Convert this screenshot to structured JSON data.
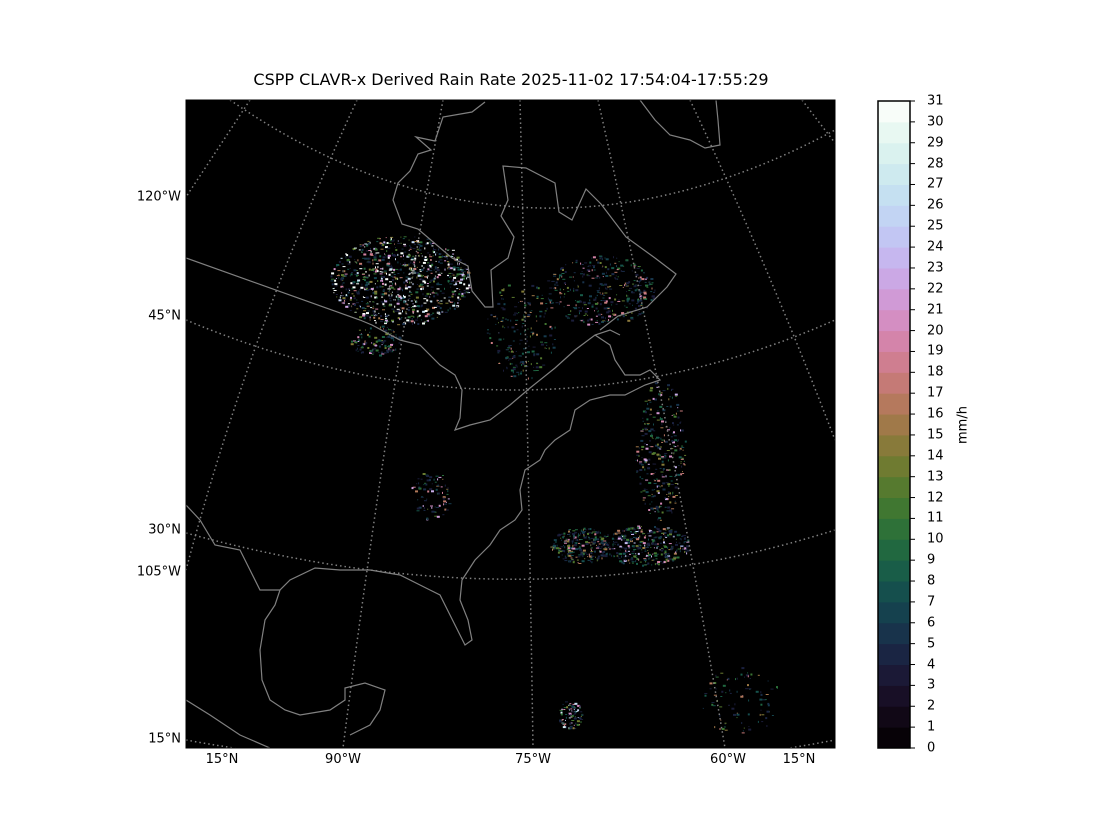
{
  "title": "CSPP CLAVR-x Derived Rain Rate 2025-11-02 17:54:04-17:55:29",
  "map": {
    "background_color": "#000000",
    "coastline_color": "#808080",
    "gridline_color": "#808080",
    "gridline_style": "dotted",
    "left_labels": [
      "120°W",
      "45°N",
      "30°N",
      "105°W",
      "15°N"
    ],
    "bottom_labels": [
      "15°N",
      "90°W",
      "75°W",
      "60°W",
      "15°N"
    ]
  },
  "colorbar": {
    "colormap": "cubehelix",
    "unit": "mm/h",
    "min": 0,
    "max": 31,
    "ticks": [
      "0",
      "1",
      "2",
      "3",
      "4",
      "5",
      "6",
      "7",
      "8",
      "9",
      "10",
      "11",
      "12",
      "13",
      "14",
      "15",
      "16",
      "17",
      "18",
      "19",
      "20",
      "21",
      "22",
      "23",
      "24",
      "25",
      "26",
      "27",
      "28",
      "29",
      "30",
      "31"
    ]
  }
}
